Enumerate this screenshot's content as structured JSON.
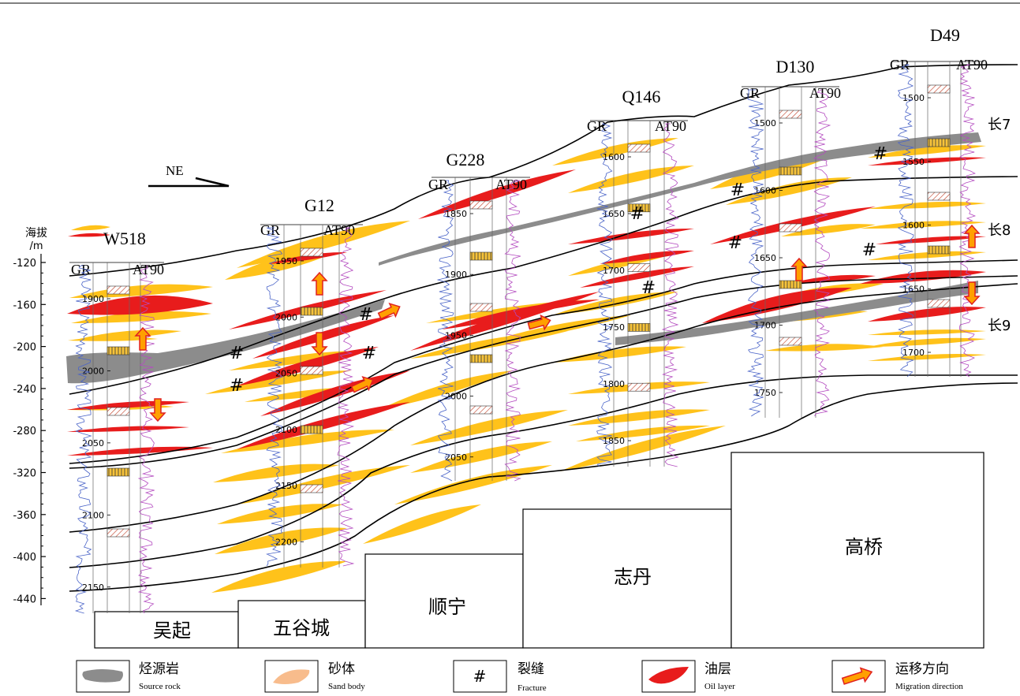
{
  "direction_label": "NE",
  "yaxis": {
    "title_line1": "海拔",
    "title_line2": "/m",
    "ticks": [
      "-120",
      "-160",
      "-200",
      "-240",
      "-280",
      "-320",
      "-360",
      "-400",
      "-440"
    ]
  },
  "wells": [
    {
      "id": "w518",
      "name": "W518",
      "gr": "GR",
      "at": "AT90",
      "depths": [
        "1900",
        "2000",
        "2050",
        "2100",
        "2150"
      ]
    },
    {
      "id": "g12",
      "name": "G12",
      "gr": "GR",
      "at": "AT90",
      "depths": [
        "1950",
        "2000",
        "2050",
        "2100",
        "2150",
        "2200"
      ]
    },
    {
      "id": "g228",
      "name": "G228",
      "gr": "GR",
      "at": "AT90",
      "depths": [
        "1850",
        "1900",
        "1950",
        "2000",
        "2050"
      ]
    },
    {
      "id": "q146",
      "name": "Q146",
      "gr": "GR",
      "at": "AT90",
      "depths": [
        "1600",
        "1650",
        "1700",
        "1750",
        "1800",
        "1850"
      ]
    },
    {
      "id": "d130",
      "name": "D130",
      "gr": "GR",
      "at": "AT90",
      "depths": [
        "1500",
        "1600",
        "1650",
        "1700",
        "1750"
      ]
    },
    {
      "id": "d49",
      "name": "D49",
      "gr": "GR",
      "at": "AT90",
      "depths": [
        "1500",
        "1550",
        "1600",
        "1650",
        "1700"
      ]
    }
  ],
  "formations": [
    "长7",
    "长8",
    "长9"
  ],
  "areas": [
    "吴起",
    "五谷城",
    "顺宁",
    "志丹",
    "高桥"
  ],
  "legend": [
    {
      "id": "source-rock",
      "zh": "烃源岩",
      "en": "Source rock",
      "color": "#8c8c8c"
    },
    {
      "id": "sand-body",
      "zh": "砂体",
      "en": "Sand body",
      "color": "#f8bc8c"
    },
    {
      "id": "fracture",
      "zh": "裂缝",
      "en": "Fracture",
      "symbol": "#"
    },
    {
      "id": "oil-layer",
      "zh": "油层",
      "en": "Oil layer",
      "color": "#e81c1c"
    },
    {
      "id": "migration",
      "zh": "运移方向",
      "en": "Migration direction",
      "color": "#f08000"
    }
  ],
  "colors": {
    "sand": "#ffc21a",
    "oil": "#e81c1c",
    "source": "#8c8c8c",
    "gr_curve": "#4a64c8",
    "at_curve": "#b44cc0",
    "arrow_fill": "#ffa000",
    "arrow_stroke": "#e02020"
  }
}
